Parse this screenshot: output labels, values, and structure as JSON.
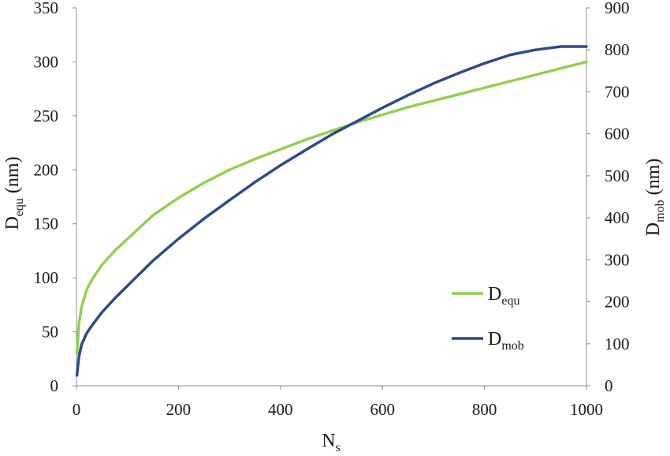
{
  "chart_data": {
    "type": "line",
    "xlabel": {
      "main": "N",
      "sub": "s"
    },
    "ylabel_left": {
      "main": "D",
      "sub": "equ",
      "unit": " (nm)"
    },
    "ylabel_right": {
      "main": "D",
      "sub": "mob",
      "unit": " (nm)"
    },
    "xlim": [
      0,
      1000
    ],
    "xticks": [
      "0",
      "200",
      "400",
      "600",
      "800",
      "1000"
    ],
    "ylim_left": [
      0,
      350
    ],
    "yticks_left": [
      "0",
      "50",
      "100",
      "150",
      "200",
      "250",
      "300",
      "350"
    ],
    "ylim_right": [
      0,
      900
    ],
    "yticks_right": [
      "0",
      "100",
      "200",
      "300",
      "400",
      "500",
      "600",
      "700",
      "800",
      "900"
    ],
    "grid": false,
    "legend_position": "bottom-right",
    "series": [
      {
        "name": {
          "main": "D",
          "sub": "equ"
        },
        "axis": "left",
        "color": "#92d050",
        "x": [
          1,
          5,
          10,
          20,
          30,
          50,
          75,
          100,
          150,
          200,
          250,
          300,
          350,
          400,
          450,
          500,
          550,
          600,
          650,
          700,
          750,
          800,
          850,
          900,
          950,
          1000
        ],
        "y": [
          30,
          58,
          73,
          89,
          98,
          112,
          125,
          136,
          158,
          174,
          188,
          200,
          210,
          219,
          228,
          236,
          244,
          251,
          258,
          264,
          270,
          276,
          282,
          288,
          294,
          300
        ]
      },
      {
        "name": {
          "main": "D",
          "sub": "mob"
        },
        "axis": "right",
        "color": "#2e4a8c",
        "x": [
          1,
          5,
          10,
          20,
          30,
          50,
          75,
          100,
          150,
          200,
          250,
          300,
          350,
          400,
          450,
          500,
          550,
          600,
          650,
          700,
          750,
          800,
          850,
          900,
          950,
          1000
        ],
        "y": [
          25,
          70,
          98,
          125,
          143,
          175,
          208,
          238,
          298,
          350,
          398,
          442,
          485,
          525,
          562,
          598,
          630,
          662,
          692,
          720,
          745,
          768,
          788,
          800,
          808,
          808
        ]
      }
    ]
  }
}
